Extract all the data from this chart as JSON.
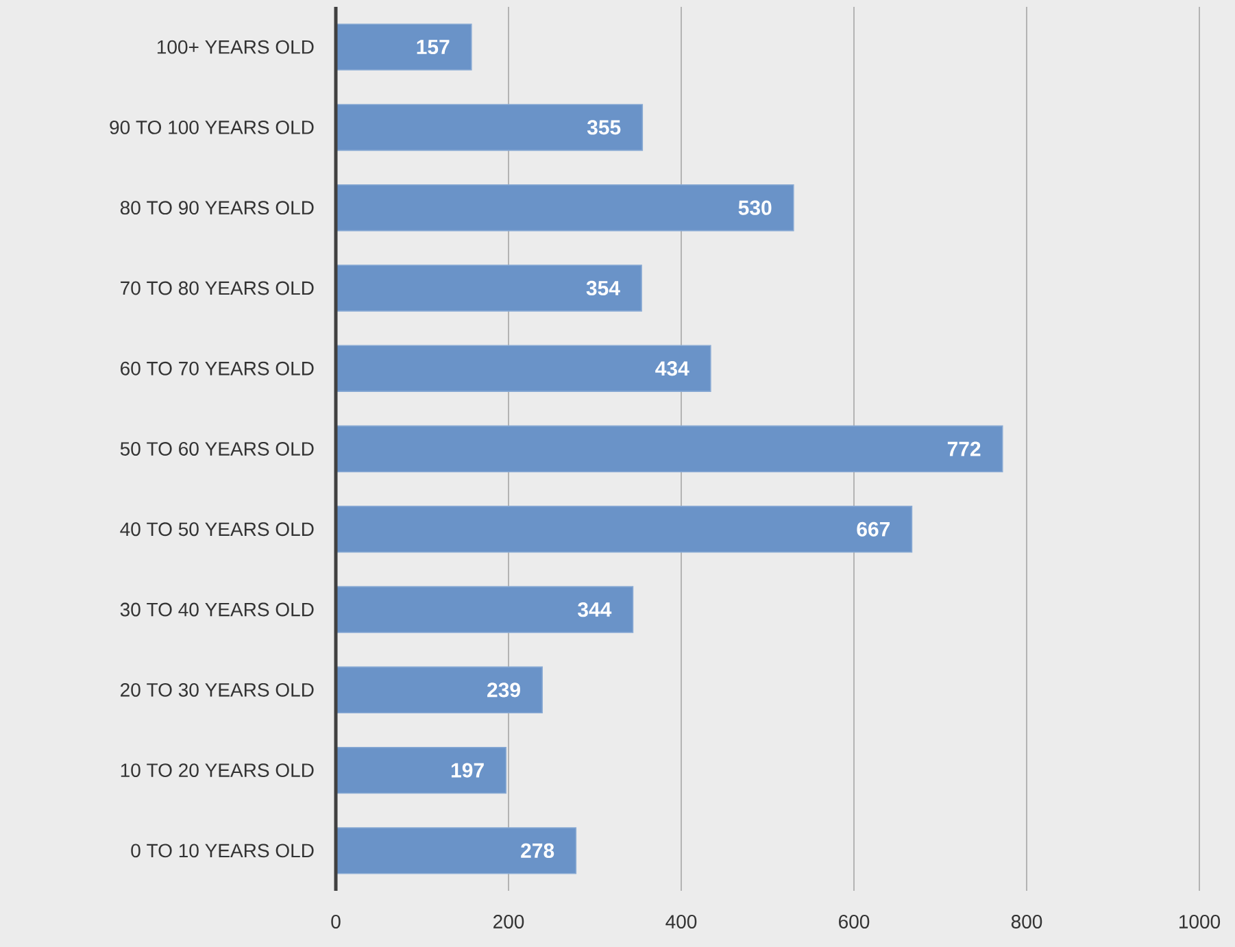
{
  "chart_data": {
    "type": "bar",
    "orientation": "horizontal",
    "categories": [
      "100+ YEARS OLD",
      "90 TO 100 YEARS OLD",
      "80 TO 90 YEARS OLD",
      "70 TO 80 YEARS OLD",
      "60 TO 70 YEARS OLD",
      "50 TO 60 YEARS OLD",
      "40 TO 50 YEARS OLD",
      "30 TO 40 YEARS OLD",
      "20 TO 30 YEARS OLD",
      "10 TO 20 YEARS OLD",
      "0 TO 10 YEARS OLD"
    ],
    "values": [
      157,
      355,
      530,
      354,
      434,
      772,
      667,
      344,
      239,
      197,
      278
    ],
    "color": "#6a93c8",
    "xlim": [
      0,
      1000
    ],
    "xticks": [
      0,
      200,
      400,
      600,
      800,
      1000
    ],
    "grid": "x",
    "data_labels": true
  }
}
